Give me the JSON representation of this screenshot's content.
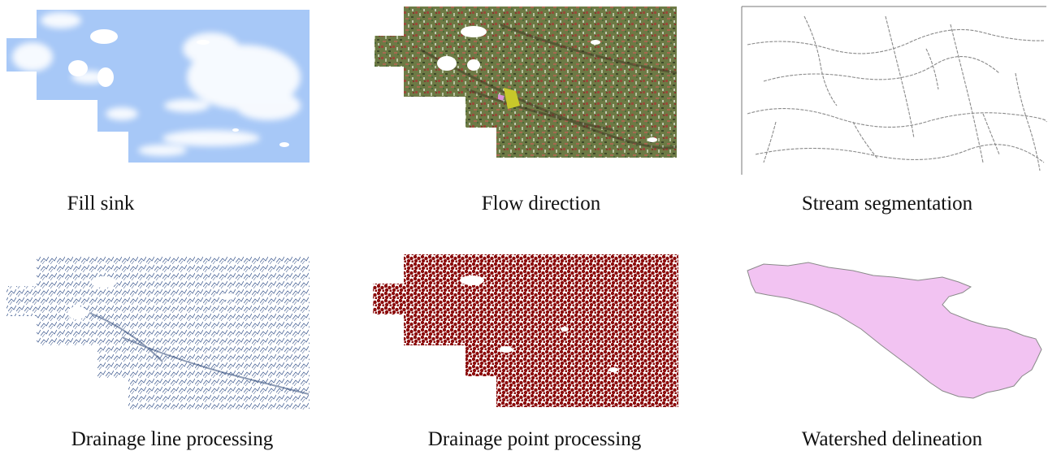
{
  "panels": [
    {
      "caption": "Fill sink",
      "color": "#a7c8f7"
    },
    {
      "caption": "Flow direction",
      "color": "#7f8a50"
    },
    {
      "caption": "Stream segmentation",
      "color": "#9a9a9a"
    },
    {
      "caption": "Drainage line processing",
      "color": "#3c5a8c"
    },
    {
      "caption": "Drainage point processing",
      "color": "#8b0b0b"
    },
    {
      "caption": "Watershed delineation",
      "color": "#f2c3f2"
    }
  ]
}
